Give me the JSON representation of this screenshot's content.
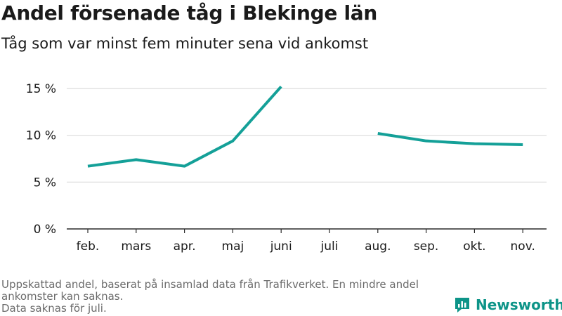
{
  "chart_data": {
    "type": "line",
    "title": "Andel försenade tåg i Blekinge län",
    "subtitle": "Tåg som var minst fem minuter sena vid ankomst",
    "categories": [
      "feb.",
      "mars",
      "apr.",
      "maj",
      "juni",
      "juli",
      "aug.",
      "sep.",
      "okt.",
      "nov."
    ],
    "series": [
      {
        "values": [
          6.7,
          7.4,
          6.7,
          9.4,
          15.2,
          null,
          10.2,
          9.4,
          9.1,
          9.0
        ]
      }
    ],
    "y_ticks": [
      0,
      5,
      10,
      15
    ],
    "y_tick_labels": [
      "0 %",
      "5 %",
      "10 %",
      "15 %"
    ],
    "ylim": [
      0,
      15.5
    ],
    "grid": true,
    "line_color": "#14a098"
  },
  "footer": {
    "note1": "Uppskattad andel, baserat på insamlad data från Trafikverket. En mindre andel ankomster kan saknas.",
    "note2": "Data saknas för juli."
  },
  "brand": {
    "name": "Newsworthy",
    "icon": "newsworthy-logo-icon",
    "color": "#0d9488"
  }
}
